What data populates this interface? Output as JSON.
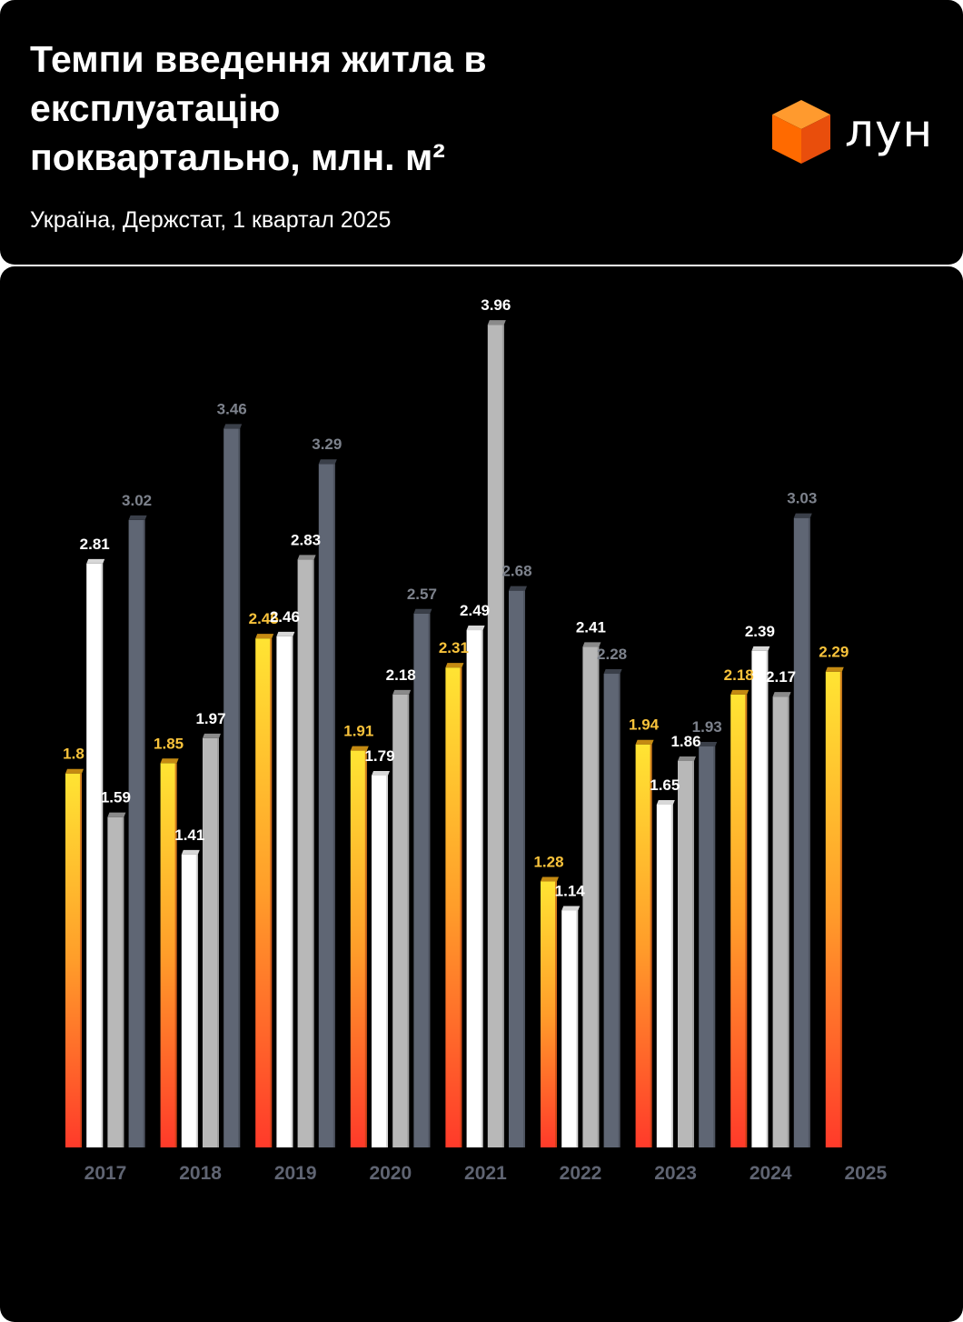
{
  "header": {
    "title_line1": "Темпи введення житла в",
    "title_line2": "експлуатацію",
    "title_line3": "поквартально, млн. м²",
    "subtitle": "Україна, Держстат, 1 квартал 2025",
    "logo_text": "лун"
  },
  "colors": {
    "q1_top": "#ffe433",
    "q1_bottom": "#ff3a2a",
    "q1_label": "#f9c33b",
    "q2": "#ffffff",
    "q2_label": "#ffffff",
    "q3": "#b8b8b8",
    "q3_label": "#ffffff",
    "q4": "#5f6674",
    "q4_label": "#7d828c",
    "year_label": "#5f6472",
    "logo": "#ff6a00"
  },
  "chart_data": {
    "type": "bar",
    "categories": [
      "2017",
      "2018",
      "2019",
      "2020",
      "2021",
      "2022",
      "2023",
      "2024",
      "2025"
    ],
    "series": [
      {
        "values": [
          1.8,
          1.85,
          2.45,
          1.91,
          2.31,
          1.28,
          1.94,
          2.18,
          2.29
        ]
      },
      {
        "values": [
          2.81,
          1.41,
          2.46,
          1.79,
          2.49,
          1.14,
          1.65,
          2.39,
          null
        ]
      },
      {
        "values": [
          1.59,
          1.97,
          2.83,
          2.18,
          3.96,
          2.41,
          1.86,
          2.17,
          null
        ]
      },
      {
        "values": [
          3.02,
          3.46,
          3.29,
          2.57,
          2.68,
          2.28,
          1.93,
          3.03,
          null
        ]
      }
    ],
    "labels": [
      [
        "1.8",
        "1.85",
        "2.45",
        "1.91",
        "2.31",
        "1.28",
        "1.94",
        "2.18",
        "2.29"
      ],
      [
        "2.81",
        "1.41",
        "2.46",
        "1.79",
        "2.49",
        "1.14",
        "1.65",
        "2.39",
        ""
      ],
      [
        "1.59",
        "1.97",
        "2.83",
        "2.18",
        "3.96",
        "2.41",
        "1.86",
        "2.17",
        ""
      ],
      [
        "3.02",
        "3.46",
        "3.29",
        "2.57",
        "2.68",
        "2.28",
        "1.93",
        "3.03",
        ""
      ]
    ],
    "ylim": [
      0,
      3.96
    ],
    "grid": false,
    "legend": "none"
  }
}
